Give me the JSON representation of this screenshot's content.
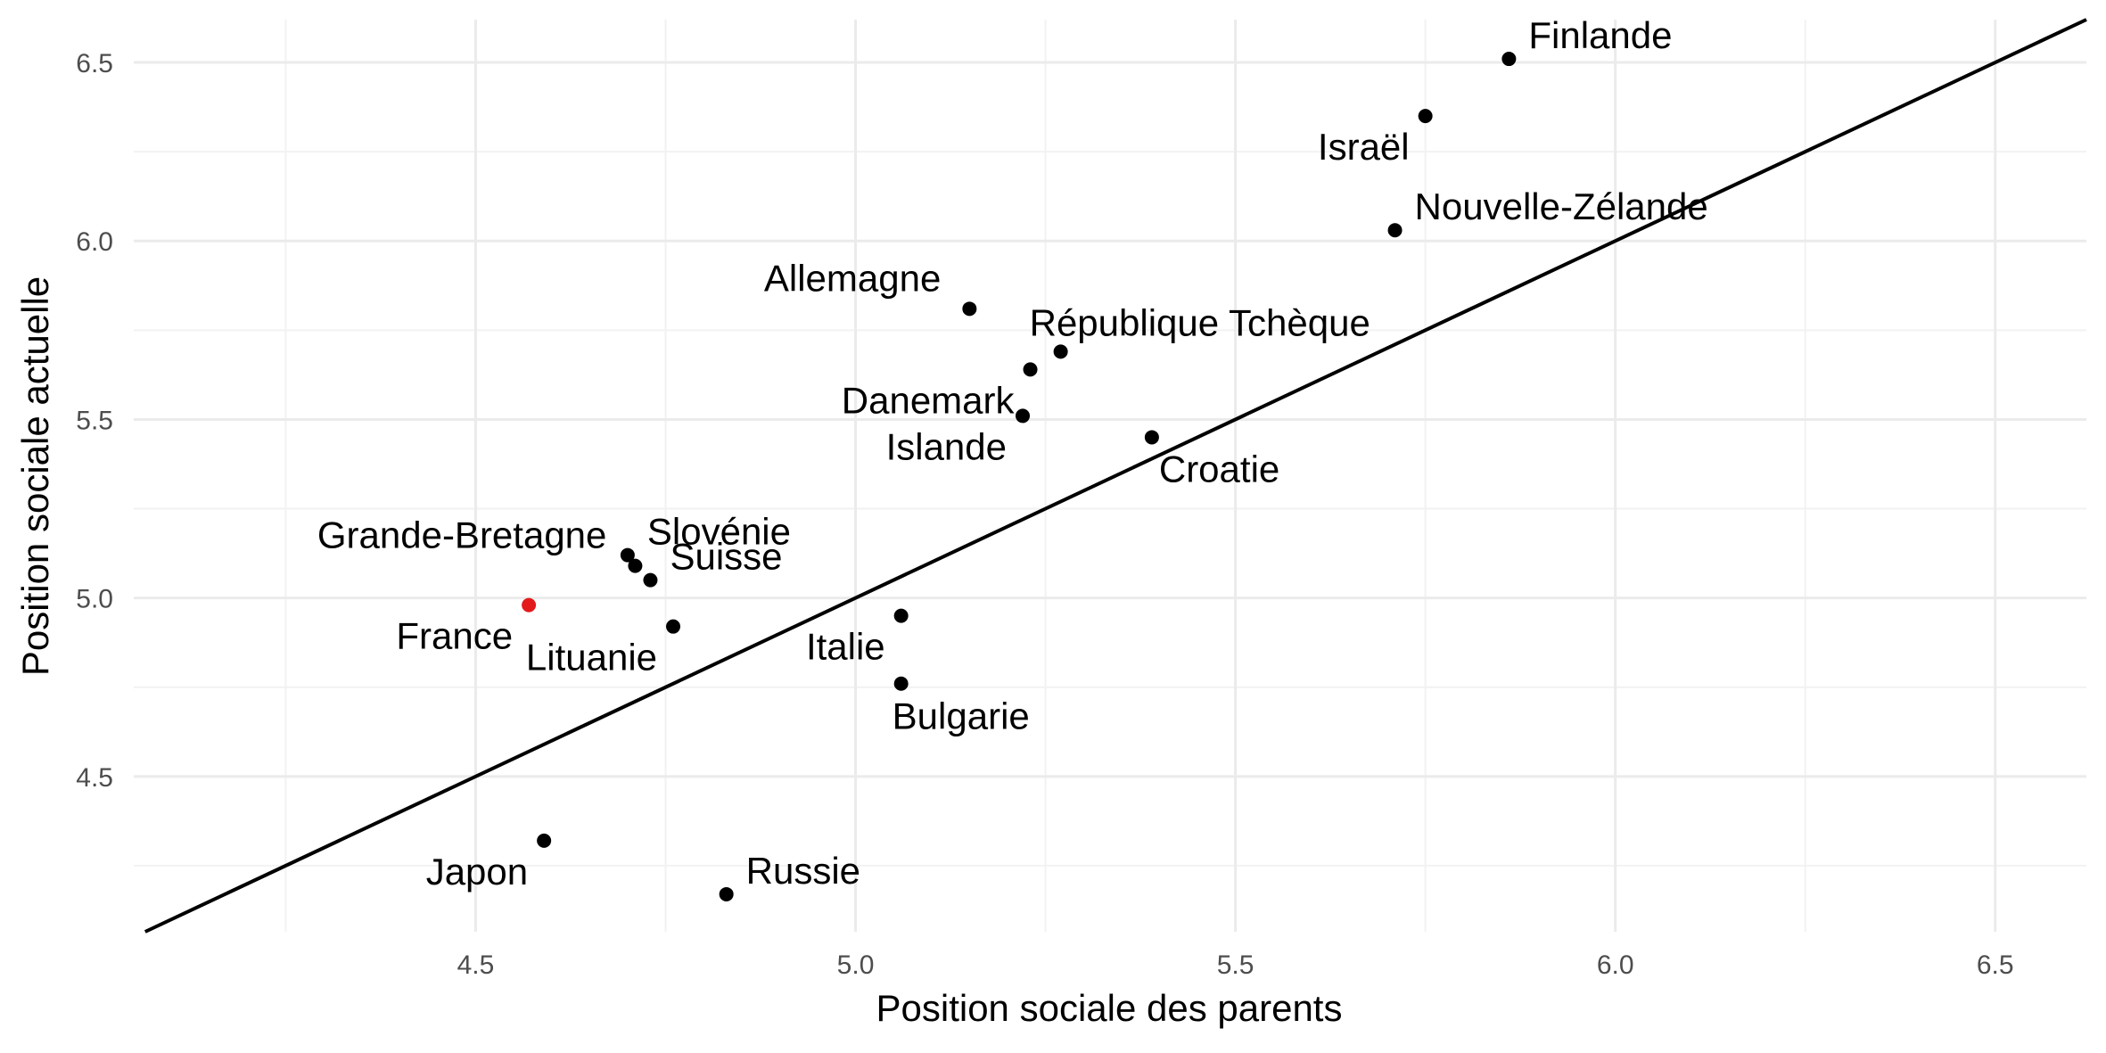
{
  "chart_data": {
    "type": "scatter",
    "xlabel": "Position sociale des parents",
    "ylabel": "Position sociale actuelle",
    "xlim": [
      4.05,
      6.62
    ],
    "ylim": [
      4.065,
      6.62
    ],
    "x_ticks": [
      4.5,
      5.0,
      5.5,
      6.0,
      6.5
    ],
    "y_ticks": [
      4.5,
      5.0,
      5.5,
      6.0,
      6.5
    ],
    "x_tick_labels": [
      "4.5",
      "5.0",
      "5.5",
      "6.0",
      "6.5"
    ],
    "y_tick_labels": [
      "4.5",
      "5.0",
      "5.5",
      "6.0",
      "6.5"
    ],
    "grid": true,
    "reference_line": "y = x",
    "default_color": "#000000",
    "highlight_color": "#e31a1c",
    "points": [
      {
        "label": "Finlande",
        "x": 5.86,
        "y": 6.51,
        "anchor": "upper-right"
      },
      {
        "label": "Israël",
        "x": 5.75,
        "y": 6.35,
        "anchor": "lower-left"
      },
      {
        "label": "Nouvelle-Zélande",
        "x": 5.71,
        "y": 6.03,
        "anchor": "upper-right"
      },
      {
        "label": "Allemagne",
        "x": 5.15,
        "y": 5.81,
        "anchor": "upper-left"
      },
      {
        "label": "République Tchèque",
        "x": 5.27,
        "y": 5.69,
        "anchor": "upper-left-wide"
      },
      {
        "label": "Danemark",
        "x": 5.23,
        "y": 5.64,
        "anchor": "lower-left"
      },
      {
        "label": "Islande",
        "x": 5.22,
        "y": 5.51,
        "anchor": "lower-left"
      },
      {
        "label": "Croatie",
        "x": 5.39,
        "y": 5.45,
        "anchor": "lower-right"
      },
      {
        "label": "Slovénie",
        "x": 4.7,
        "y": 5.12,
        "anchor": "upper-right"
      },
      {
        "label": "Grande-Bretagne",
        "x": 4.71,
        "y": 5.09,
        "anchor": "upper-left"
      },
      {
        "label": "Suisse",
        "x": 4.73,
        "y": 5.05,
        "anchor": "upper-right"
      },
      {
        "label": "France",
        "x": 4.57,
        "y": 4.98,
        "anchor": "lower-left",
        "highlight": true
      },
      {
        "label": "Lituanie",
        "x": 4.76,
        "y": 4.92,
        "anchor": "lower-left"
      },
      {
        "label": "Italie",
        "x": 5.06,
        "y": 4.95,
        "anchor": "lower-left"
      },
      {
        "label": "Bulgarie",
        "x": 5.06,
        "y": 4.76,
        "anchor": "lower-middle"
      },
      {
        "label": "Japon",
        "x": 4.59,
        "y": 4.32,
        "anchor": "lower-left"
      },
      {
        "label": "Russie",
        "x": 4.83,
        "y": 4.17,
        "anchor": "upper-right"
      }
    ]
  }
}
